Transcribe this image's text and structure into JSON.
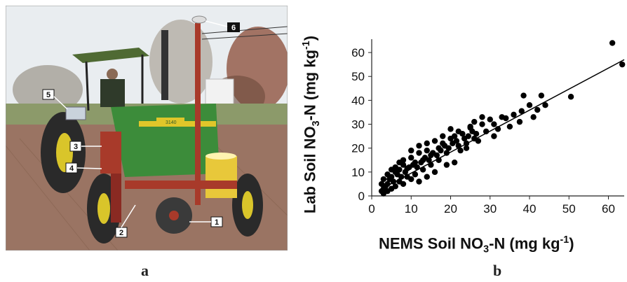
{
  "panels": {
    "a_caption": "a",
    "b_caption": "b"
  },
  "photo": {
    "description_labels": [
      "1",
      "2",
      "3",
      "4",
      "5",
      "6"
    ],
    "tractor_model_plate": "3140"
  },
  "chart_data": {
    "type": "scatter",
    "xlabel_main": "NEMS Soil NO",
    "xlabel_sub": "3",
    "xlabel_rest": "-N (mg kg",
    "xlabel_sup": "-1",
    "xlabel_end": ")",
    "ylabel_main": "Lab Soil NO",
    "ylabel_sub": "3",
    "ylabel_rest": "-N (mg kg",
    "ylabel_sup": "-1",
    "ylabel_end": ")",
    "xlim": [
      0,
      64
    ],
    "ylim": [
      0,
      65
    ],
    "xticks": [
      0,
      10,
      20,
      30,
      40,
      50,
      60
    ],
    "yticks": [
      0,
      10,
      20,
      30,
      40,
      50,
      60
    ],
    "trendline": {
      "x": [
        2,
        64
      ],
      "y": [
        2.5,
        57
      ]
    },
    "points": [
      [
        61,
        64
      ],
      [
        63.5,
        55
      ],
      [
        50.5,
        41.5
      ],
      [
        43,
        42
      ],
      [
        38.5,
        42
      ],
      [
        42,
        36
      ],
      [
        41,
        33
      ],
      [
        38,
        35.5
      ],
      [
        36,
        34
      ],
      [
        33,
        33
      ],
      [
        35,
        29
      ],
      [
        37.5,
        31
      ],
      [
        34,
        32.5
      ],
      [
        30,
        32
      ],
      [
        32,
        28
      ],
      [
        28,
        30
      ],
      [
        25,
        28.5
      ],
      [
        26,
        24
      ],
      [
        23,
        26
      ],
      [
        21,
        25
      ],
      [
        24,
        22
      ],
      [
        27,
        23
      ],
      [
        20,
        24
      ],
      [
        22,
        21
      ],
      [
        18,
        22
      ],
      [
        19,
        18
      ],
      [
        17,
        20
      ],
      [
        16,
        23
      ],
      [
        15,
        17
      ],
      [
        14,
        19
      ],
      [
        13,
        15
      ],
      [
        12,
        18
      ],
      [
        11,
        14
      ],
      [
        10,
        16
      ],
      [
        9.5,
        12
      ],
      [
        8,
        13
      ],
      [
        7,
        11
      ],
      [
        6,
        10
      ],
      [
        5,
        8
      ],
      [
        4.5,
        7
      ],
      [
        4,
        5
      ],
      [
        3.5,
        4
      ],
      [
        3,
        3
      ],
      [
        2.5,
        2
      ],
      [
        5.5,
        6
      ],
      [
        6.5,
        9
      ],
      [
        7.5,
        8
      ],
      [
        8.5,
        10
      ],
      [
        9,
        11.5
      ],
      [
        10.5,
        13
      ],
      [
        11.5,
        12
      ],
      [
        12.5,
        14
      ],
      [
        13.5,
        16
      ],
      [
        14.5,
        15
      ],
      [
        15.5,
        18
      ],
      [
        16.5,
        17
      ],
      [
        17.5,
        19
      ],
      [
        18.5,
        21
      ],
      [
        19.5,
        20
      ],
      [
        20.5,
        22
      ],
      [
        21.5,
        23
      ],
      [
        22.5,
        19
      ],
      [
        23.5,
        24
      ],
      [
        24.5,
        25
      ],
      [
        25.5,
        27
      ],
      [
        26.5,
        26
      ],
      [
        29,
        27
      ],
      [
        31,
        25
      ],
      [
        19,
        13
      ],
      [
        21,
        14
      ],
      [
        12,
        6
      ],
      [
        14,
        8
      ],
      [
        16,
        10
      ],
      [
        10,
        7
      ],
      [
        8,
        5
      ],
      [
        6,
        4
      ],
      [
        4,
        2
      ],
      [
        3,
        1
      ],
      [
        5,
        3
      ],
      [
        7,
        6
      ],
      [
        9,
        8
      ],
      [
        11,
        9
      ],
      [
        13,
        11
      ],
      [
        15,
        13
      ],
      [
        17,
        15
      ],
      [
        4,
        9
      ],
      [
        3,
        7
      ],
      [
        2.5,
        5
      ],
      [
        6,
        12
      ],
      [
        8,
        15
      ],
      [
        5,
        11
      ],
      [
        7,
        14
      ],
      [
        12,
        21
      ],
      [
        10,
        19
      ],
      [
        14,
        22
      ],
      [
        18,
        25
      ],
      [
        22,
        27
      ],
      [
        25,
        29
      ],
      [
        28,
        33
      ],
      [
        40,
        38
      ],
      [
        44,
        38
      ],
      [
        31,
        30
      ],
      [
        24,
        20
      ],
      [
        26,
        31
      ],
      [
        20,
        28
      ]
    ]
  }
}
